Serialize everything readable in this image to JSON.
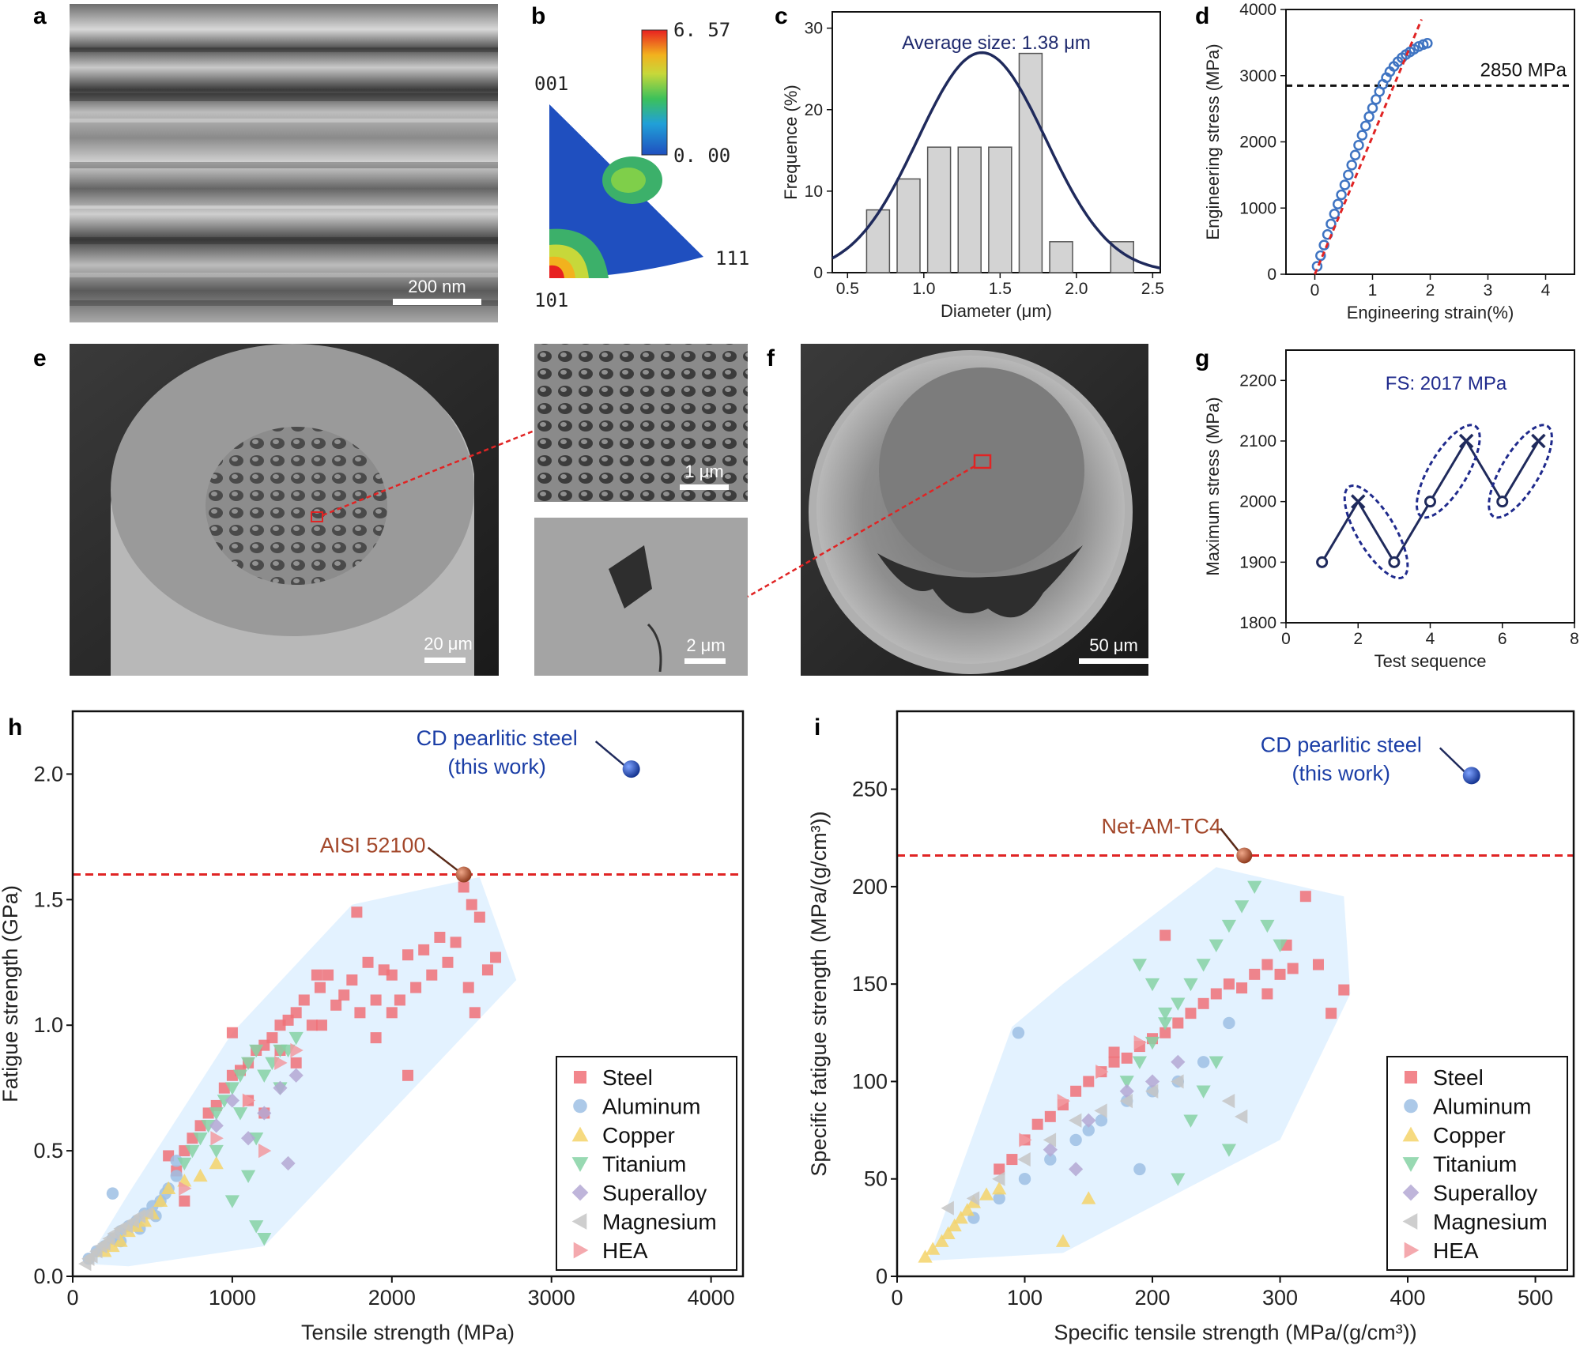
{
  "panels": {
    "a": {
      "label": "a",
      "scale_bar": "200 nm"
    },
    "b": {
      "label": "b",
      "corner_001": "001",
      "corner_101": "101",
      "corner_111": "111",
      "cbar_max": "6. 57",
      "cbar_min": "0. 00"
    },
    "c": {
      "label": "c"
    },
    "d": {
      "label": "d"
    },
    "e": {
      "label": "e",
      "scale_main": "20 μm",
      "scale_zoom1": "1 μm",
      "scale_zoom2": "2 μm"
    },
    "f": {
      "label": "f",
      "scale_main": "50 μm"
    },
    "g": {
      "label": "g"
    },
    "h": {
      "label": "h"
    },
    "i": {
      "label": "i"
    }
  },
  "chart_data": [
    {
      "id": "c",
      "type": "bar",
      "annotation": "Average size: 1.38 μm",
      "xlabel": "Diameter (μm)",
      "ylabel": "Frequence (%)",
      "xlim": [
        0.4,
        2.55
      ],
      "ylim": [
        0,
        32
      ],
      "xticks": [
        0.5,
        1.0,
        1.5,
        2.0,
        2.5
      ],
      "yticks": [
        0,
        10,
        20,
        30
      ],
      "bars": {
        "x": [
          0.7,
          0.9,
          1.1,
          1.3,
          1.5,
          1.7,
          1.9,
          2.3
        ],
        "values": [
          7.7,
          11.5,
          15.4,
          15.4,
          15.4,
          26.9,
          3.8,
          3.8
        ],
        "width": 0.15
      },
      "fit": {
        "type": "gaussian",
        "mean": 1.38,
        "sigma": 0.42,
        "peak": 27
      },
      "colors": {
        "bar": "#d3d3d3",
        "fit": "#1f2a5c",
        "annotation": "#1f2a6e"
      }
    },
    {
      "id": "d",
      "type": "scatter",
      "xlabel": "Engineering strain(%)",
      "ylabel": "Engineering stress (MPa)",
      "xlim": [
        -0.5,
        4.5
      ],
      "ylim": [
        0,
        4000
      ],
      "xticks": [
        0,
        1,
        2,
        3,
        4
      ],
      "yticks": [
        0,
        1000,
        2000,
        3000,
        4000
      ],
      "points": {
        "x": [
          0.04,
          0.1,
          0.16,
          0.22,
          0.28,
          0.34,
          0.4,
          0.46,
          0.52,
          0.58,
          0.64,
          0.7,
          0.76,
          0.82,
          0.88,
          0.94,
          1.0,
          1.06,
          1.12,
          1.18,
          1.24,
          1.3,
          1.37,
          1.44,
          1.51,
          1.58,
          1.65,
          1.72,
          1.8,
          1.88,
          1.95
        ],
        "y": [
          120,
          280,
          440,
          600,
          760,
          910,
          1060,
          1200,
          1350,
          1500,
          1650,
          1800,
          1950,
          2100,
          2240,
          2380,
          2510,
          2640,
          2760,
          2870,
          2970,
          3060,
          3140,
          3210,
          3270,
          3320,
          3360,
          3400,
          3440,
          3470,
          3490
        ]
      },
      "fit_line": {
        "x": [
          0,
          1.85
        ],
        "y": [
          0,
          3850
        ]
      },
      "reference": {
        "y": 2850,
        "label": "2850 MPa"
      },
      "colors": {
        "points": "#3f74c2",
        "fit": "#e02424",
        "ref": "#111111"
      }
    },
    {
      "id": "g",
      "type": "line",
      "annotation": "FS: 2017 MPa",
      "xlabel": "Test sequence",
      "ylabel": "Maximum stress (MPa)",
      "xlim": [
        0,
        8
      ],
      "ylim": [
        1800,
        2250
      ],
      "xticks": [
        0,
        2,
        4,
        6,
        8
      ],
      "yticks": [
        1800,
        1900,
        2000,
        2100,
        2200
      ],
      "x": [
        1,
        2,
        3,
        4,
        5,
        6,
        7
      ],
      "y": [
        1900,
        2000,
        1900,
        2000,
        2100,
        2000,
        2100
      ],
      "markers": [
        "o",
        "x",
        "o",
        "o",
        "x",
        "o",
        "x"
      ],
      "ellipse_pairs": [
        [
          2,
          3
        ],
        [
          4,
          5
        ],
        [
          6,
          7
        ]
      ],
      "colors": {
        "line": "#1f2a5c",
        "ellipse": "#1f2a8c",
        "annotation": "#1f2a8c"
      }
    },
    {
      "id": "h",
      "type": "scatter",
      "xlabel": "Tensile strength (MPa)",
      "ylabel": "Fatigue strength (GPa)",
      "xlim": [
        0,
        4200
      ],
      "ylim": [
        0,
        2.25
      ],
      "xticks": [
        0,
        1000,
        2000,
        3000,
        4000
      ],
      "yticks": [
        0.0,
        0.5,
        1.0,
        1.5,
        2.0
      ],
      "reference": {
        "y": 1.6
      },
      "highlight": [
        {
          "label": "CD pearlitic steel\n(this work)",
          "x": 3500,
          "y": 2.02,
          "color": "#1b3ea6"
        },
        {
          "label": "AISI 52100",
          "x": 2450,
          "y": 1.6,
          "color": "#a3472a"
        }
      ],
      "envelope": [
        [
          80,
          0.05
        ],
        [
          350,
          0.33
        ],
        [
          1000,
          0.97
        ],
        [
          1750,
          1.48
        ],
        [
          2550,
          1.59
        ],
        [
          2780,
          1.18
        ],
        [
          1200,
          0.12
        ],
        [
          350,
          0.04
        ]
      ],
      "series": [
        {
          "name": "Steel",
          "marker": "square",
          "color": "#f07178",
          "x": [
            600,
            650,
            700,
            750,
            800,
            850,
            900,
            950,
            1000,
            1050,
            1100,
            1150,
            1200,
            1250,
            1300,
            1350,
            1400,
            1450,
            1500,
            1550,
            1600,
            1650,
            1700,
            1750,
            1800,
            1850,
            1900,
            1950,
            2000,
            2050,
            2100,
            2150,
            2200,
            2250,
            2300,
            2350,
            2400,
            2450,
            2500,
            2550,
            2600,
            2650,
            1780,
            1530,
            2480,
            2520,
            1000,
            1560,
            1100,
            1300,
            700,
            1400,
            1200,
            1900,
            2000,
            2100
          ],
          "y": [
            0.48,
            0.42,
            0.5,
            0.55,
            0.6,
            0.65,
            0.68,
            0.75,
            0.8,
            0.82,
            0.85,
            0.9,
            0.92,
            0.95,
            1.0,
            1.02,
            1.05,
            1.1,
            1.0,
            1.15,
            1.2,
            1.08,
            1.12,
            1.18,
            1.05,
            1.25,
            1.1,
            1.22,
            1.2,
            1.1,
            1.28,
            1.15,
            1.3,
            1.2,
            1.35,
            1.25,
            1.33,
            1.55,
            1.48,
            1.43,
            1.22,
            1.27,
            1.45,
            1.2,
            1.15,
            1.05,
            0.97,
            1.0,
            0.7,
            0.9,
            0.3,
            0.85,
            0.65,
            0.95,
            1.05,
            0.8
          ]
        },
        {
          "name": "Aluminum",
          "marker": "circle",
          "color": "#9ec0e4",
          "x": [
            100,
            150,
            200,
            250,
            300,
            350,
            400,
            450,
            500,
            550,
            600,
            650,
            300,
            420,
            520,
            580,
            650,
            250
          ],
          "y": [
            0.07,
            0.1,
            0.12,
            0.15,
            0.18,
            0.2,
            0.22,
            0.25,
            0.28,
            0.3,
            0.35,
            0.4,
            0.14,
            0.19,
            0.24,
            0.33,
            0.46,
            0.33
          ]
        },
        {
          "name": "Copper",
          "marker": "tri-up",
          "color": "#f5d46a",
          "x": [
            200,
            250,
            300,
            350,
            400,
            450,
            500,
            550,
            600,
            700,
            800,
            900
          ],
          "y": [
            0.1,
            0.12,
            0.14,
            0.18,
            0.2,
            0.22,
            0.25,
            0.3,
            0.35,
            0.38,
            0.4,
            0.45
          ]
        },
        {
          "name": "Titanium",
          "marker": "tri-down",
          "color": "#86d2a4",
          "x": [
            700,
            750,
            800,
            850,
            900,
            950,
            1000,
            1050,
            1100,
            1150,
            1200,
            1250,
            1300,
            1000,
            1100,
            900,
            1050,
            1150,
            1200,
            1350,
            1400,
            1300,
            1150
          ],
          "y": [
            0.45,
            0.5,
            0.55,
            0.6,
            0.65,
            0.7,
            0.75,
            0.8,
            0.85,
            0.9,
            0.8,
            0.85,
            0.9,
            0.3,
            0.4,
            0.5,
            0.65,
            0.2,
            0.15,
            0.9,
            0.95,
            0.75,
            0.55
          ]
        },
        {
          "name": "Superalloy",
          "marker": "diamond",
          "color": "#b4a8d4",
          "x": [
            900,
            1000,
            1100,
            1200,
            1300,
            1400,
            1350
          ],
          "y": [
            0.6,
            0.7,
            0.55,
            0.65,
            0.75,
            0.8,
            0.45
          ]
        },
        {
          "name": "Magnesium",
          "marker": "tri-left",
          "color": "#c6c6c6",
          "x": [
            80,
            100,
            120,
            150,
            180,
            200,
            230,
            260,
            300,
            340,
            380,
            420,
            470
          ],
          "y": [
            0.05,
            0.07,
            0.08,
            0.1,
            0.12,
            0.13,
            0.15,
            0.17,
            0.19,
            0.2,
            0.22,
            0.24,
            0.25
          ]
        },
        {
          "name": "HEA",
          "marker": "tri-right",
          "color": "#f29aa0",
          "x": [
            700,
            900,
            1100,
            1300,
            1400,
            1200
          ],
          "y": [
            0.35,
            0.55,
            0.7,
            0.85,
            0.9,
            0.5
          ]
        }
      ],
      "legend_position": "bottom-right"
    },
    {
      "id": "i",
      "type": "scatter",
      "xlabel": "Specific tensile strength (MPa/(g/cm³))",
      "ylabel": "Specific fatigue strength (MPa/(g/cm³))",
      "xlim": [
        0,
        530
      ],
      "ylim": [
        0,
        290
      ],
      "xticks": [
        0,
        100,
        200,
        300,
        400,
        500
      ],
      "yticks": [
        0,
        50,
        100,
        150,
        200,
        250
      ],
      "reference": {
        "y": 216
      },
      "highlight": [
        {
          "label": "CD pearlitic steel\n(this work)",
          "x": 450,
          "y": 257,
          "color": "#1b3ea6"
        },
        {
          "label": "Net-AM-TC4",
          "x": 272,
          "y": 216,
          "color": "#a3472a"
        }
      ],
      "envelope": [
        [
          25,
          10
        ],
        [
          90,
          128
        ],
        [
          130,
          150
        ],
        [
          250,
          210
        ],
        [
          350,
          195
        ],
        [
          355,
          145
        ],
        [
          300,
          70
        ],
        [
          130,
          12
        ],
        [
          25,
          8
        ]
      ],
      "series": [
        {
          "name": "Steel",
          "marker": "square",
          "color": "#f07178",
          "x": [
            80,
            90,
            100,
            110,
            120,
            130,
            140,
            150,
            160,
            170,
            180,
            190,
            200,
            210,
            220,
            230,
            240,
            250,
            260,
            270,
            280,
            290,
            300,
            310,
            320,
            330,
            340,
            350,
            170,
            210,
            290,
            305
          ],
          "y": [
            55,
            60,
            70,
            78,
            82,
            88,
            95,
            100,
            105,
            110,
            112,
            118,
            122,
            125,
            130,
            135,
            140,
            145,
            150,
            148,
            155,
            160,
            155,
            158,
            195,
            160,
            135,
            147,
            115,
            175,
            145,
            170
          ]
        },
        {
          "name": "Aluminum",
          "marker": "circle",
          "color": "#9ec0e4",
          "x": [
            60,
            80,
            100,
            120,
            140,
            160,
            180,
            200,
            220,
            240,
            260,
            95,
            150,
            190
          ],
          "y": [
            30,
            40,
            50,
            60,
            70,
            80,
            90,
            95,
            100,
            110,
            130,
            125,
            75,
            55
          ]
        },
        {
          "name": "Copper",
          "marker": "tri-up",
          "color": "#f5d46a",
          "x": [
            22,
            28,
            35,
            40,
            45,
            50,
            55,
            60,
            70,
            80,
            150,
            130
          ],
          "y": [
            10,
            14,
            18,
            22,
            26,
            30,
            34,
            38,
            42,
            45,
            40,
            18
          ]
        },
        {
          "name": "Titanium",
          "marker": "tri-down",
          "color": "#86d2a4",
          "x": [
            180,
            190,
            200,
            210,
            220,
            230,
            240,
            250,
            260,
            270,
            280,
            290,
            300,
            250,
            260,
            240,
            230,
            220,
            210,
            200,
            190
          ],
          "y": [
            100,
            110,
            120,
            130,
            140,
            150,
            160,
            170,
            180,
            190,
            200,
            180,
            170,
            110,
            65,
            95,
            80,
            50,
            135,
            150,
            160
          ]
        },
        {
          "name": "Superalloy",
          "marker": "diamond",
          "color": "#b4a8d4",
          "x": [
            120,
            150,
            180,
            200,
            220,
            140
          ],
          "y": [
            65,
            80,
            95,
            100,
            110,
            55
          ]
        },
        {
          "name": "Magnesium",
          "marker": "tri-left",
          "color": "#c6c6c6",
          "x": [
            40,
            60,
            80,
            100,
            120,
            140,
            160,
            180,
            200,
            220,
            260,
            270
          ],
          "y": [
            35,
            40,
            50,
            60,
            70,
            80,
            85,
            90,
            95,
            100,
            90,
            82
          ]
        },
        {
          "name": "HEA",
          "marker": "tri-right",
          "color": "#f29aa0",
          "x": [
            100,
            130,
            160,
            190
          ],
          "y": [
            70,
            90,
            105,
            120
          ]
        }
      ],
      "legend_position": "bottom-right"
    }
  ],
  "colors": {
    "envelope": "#dcefff",
    "highlight_blue": "#1b3ea6",
    "highlight_brown": "#a3472a",
    "ref_red": "#e02424"
  }
}
